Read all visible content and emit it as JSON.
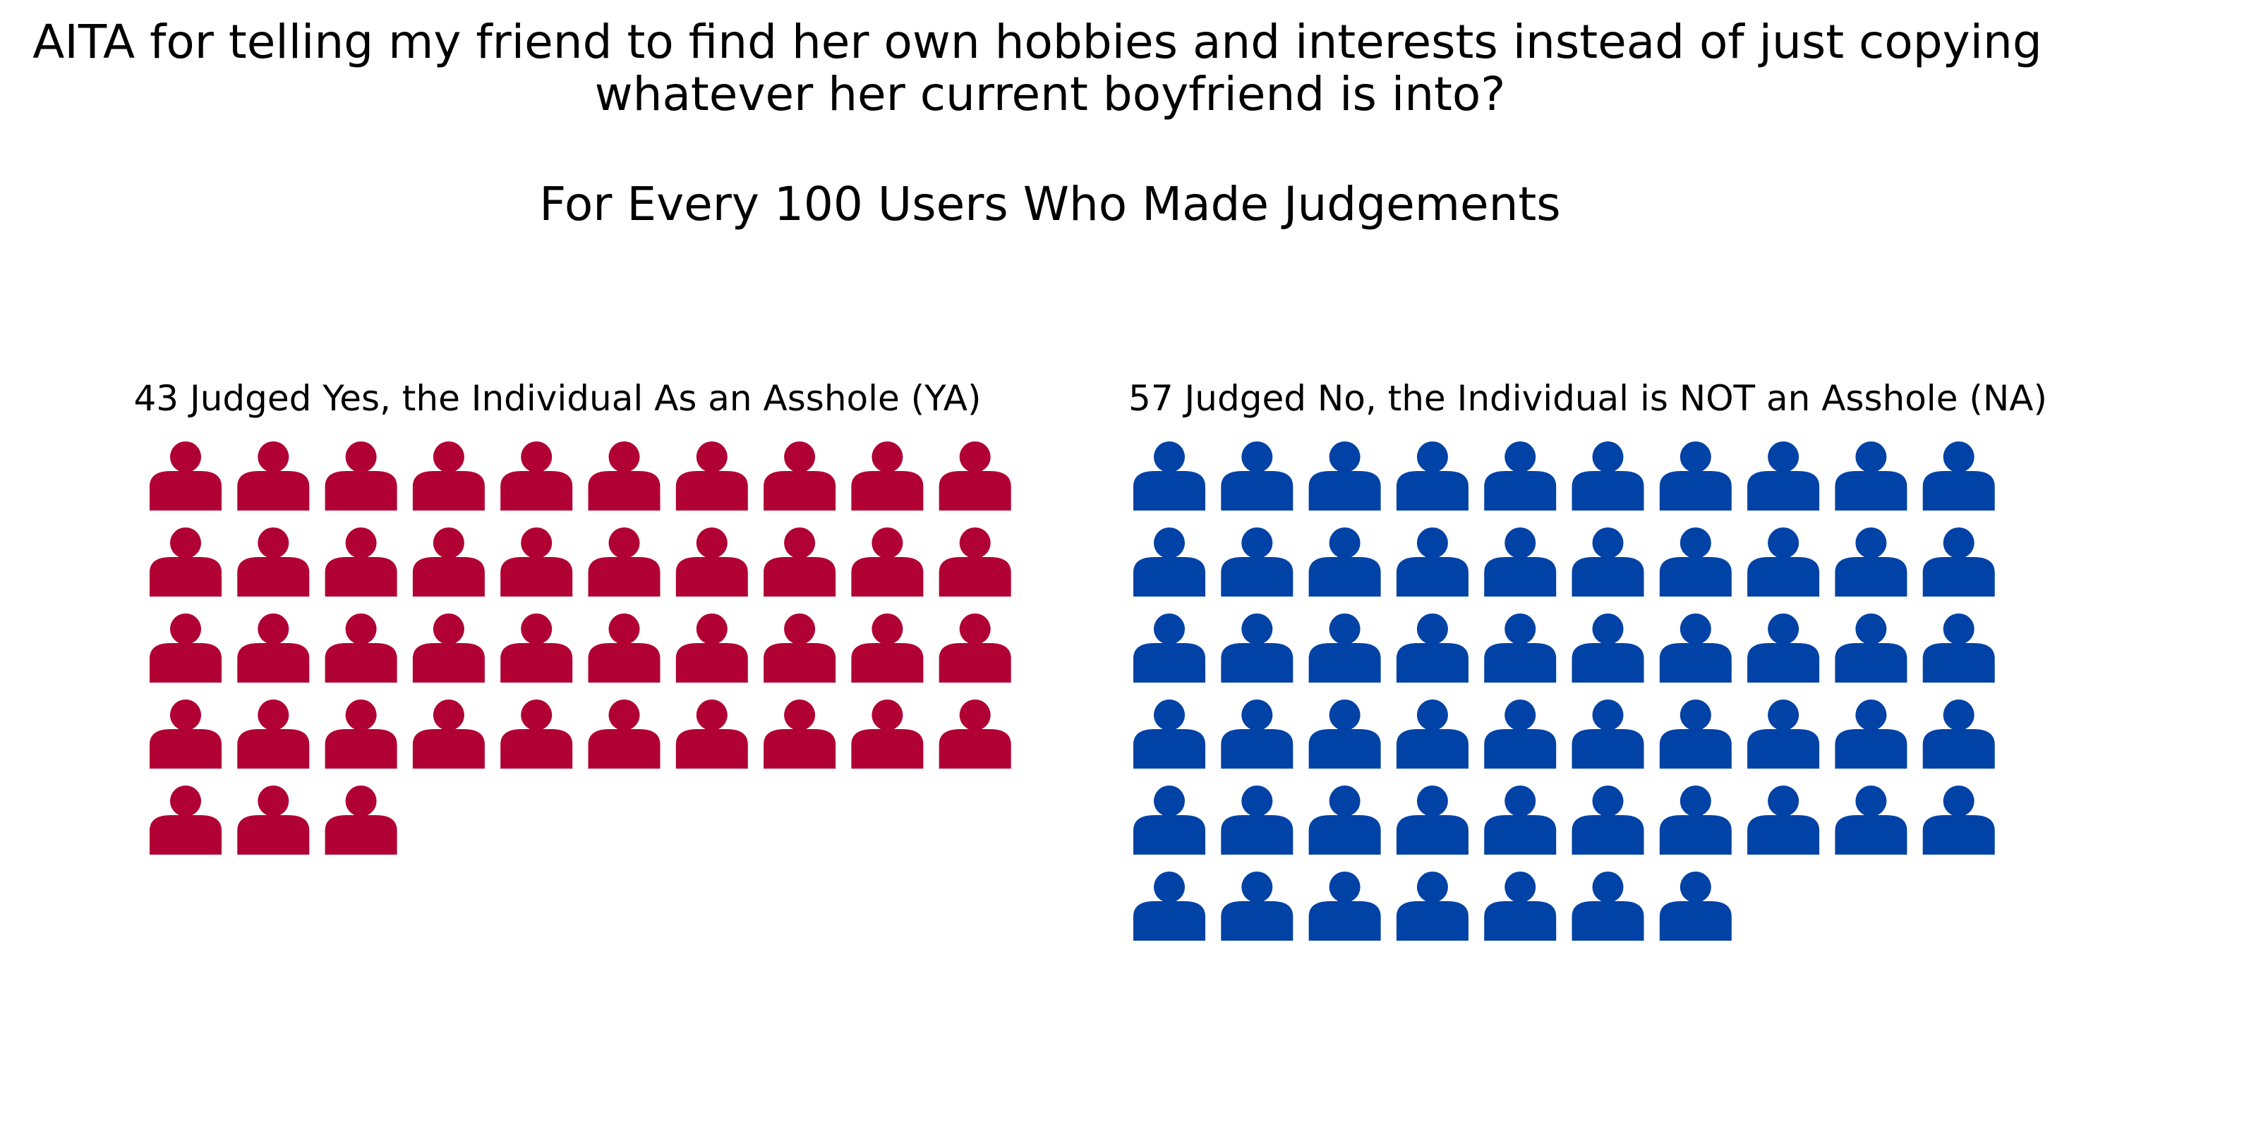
{
  "chart_data": {
    "type": "pictogram",
    "title_lines": [
      "AITA for telling my friend to find her own hobbies and interests instead of just copying",
      "whatever her current boyfriend is into?"
    ],
    "subtitle": "For Every 100 Users Who Made Judgements",
    "icon": "person-icon",
    "icons_per_row": 10,
    "groups": [
      {
        "key": "ya",
        "label": "43 Judged Yes, the Individual As an Asshole (YA)",
        "count": 43,
        "color": "#b00034"
      },
      {
        "key": "na",
        "label": "57 Judged No, the Individual is NOT an Asshole (NA)",
        "count": 57,
        "color": "#0042a5"
      }
    ]
  }
}
